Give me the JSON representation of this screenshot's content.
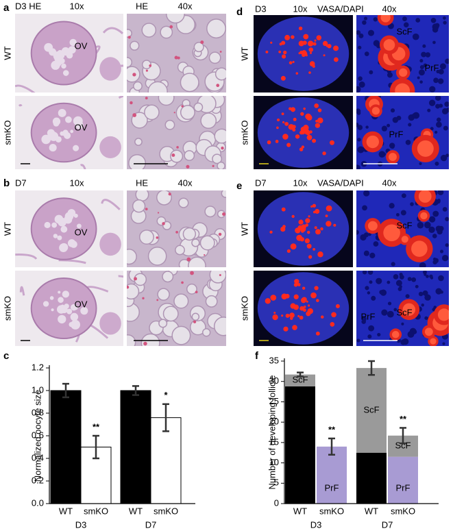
{
  "figure": {
    "panels": [
      {
        "label": "a",
        "headers": [
          "D3 HE",
          "10x",
          "HE",
          "40x"
        ],
        "rows": [
          "WT",
          "smKO"
        ],
        "annotations": [
          "OV",
          "OV"
        ]
      },
      {
        "label": "b",
        "headers": [
          "D7",
          "10x",
          "HE",
          "40x"
        ],
        "rows": [
          "WT",
          "smKO"
        ],
        "annotations": [
          "OV",
          "OV"
        ]
      },
      {
        "label": "d",
        "headers": [
          "D3",
          "10x",
          "VASA",
          "/",
          "DAPI",
          "40x"
        ],
        "rows": [
          "WT",
          "smKO"
        ],
        "annotations": [
          "ScF",
          "PrF",
          "PrF"
        ]
      },
      {
        "label": "e",
        "headers": [
          "D7",
          "10x",
          "VASA",
          "/",
          "DAPI",
          "40x"
        ],
        "rows": [
          "WT",
          "smKO"
        ],
        "annotations": [
          "ScF",
          "PrF",
          "ScF"
        ]
      }
    ]
  },
  "chart_data": [
    {
      "type": "bar",
      "panel_label": "c",
      "ylabel": "Normalized oocyte size",
      "categories": [
        "WT",
        "smKO",
        "WT",
        "smKO"
      ],
      "group_labels": [
        "D3",
        "D7"
      ],
      "values": [
        1.0,
        0.5,
        1.0,
        0.76
      ],
      "errors": [
        0.06,
        0.1,
        0.04,
        0.12
      ],
      "colors": [
        "#000000",
        "#ffffff",
        "#000000",
        "#ffffff"
      ],
      "significance": [
        null,
        "**",
        null,
        "*"
      ],
      "ylim": [
        0,
        1.2
      ],
      "yticks": [
        {
          "value": 0,
          "label": "0.0"
        },
        0.2,
        0.4,
        0.6,
        0.8,
        {
          "value": 1,
          "label": "1.0"
        },
        1.2
      ]
    },
    {
      "type": "stacked_bar",
      "panel_label": "f",
      "ylabel": "Number of developing follicle",
      "categories": [
        "WT",
        "smKO",
        "WT",
        "smKO"
      ],
      "group_labels": [
        "D3",
        "D7"
      ],
      "series": [
        {
          "name": "PrF",
          "colors": [
            "#000000",
            "#a89bd3",
            "#000000",
            "#a89bd3"
          ],
          "values": [
            28.8,
            14,
            12.5,
            11.5
          ]
        },
        {
          "name": "ScF",
          "color": "#9a9a9a",
          "values": [
            2.9,
            0,
            20.8,
            5.2
          ]
        }
      ],
      "errors": [
        0.5,
        2,
        1.7,
        1.9
      ],
      "significance": [
        null,
        "**",
        null,
        "**"
      ],
      "ylim": [
        0,
        35
      ],
      "yticks": [
        0,
        5,
        10,
        15,
        20,
        25,
        30,
        35
      ]
    }
  ]
}
